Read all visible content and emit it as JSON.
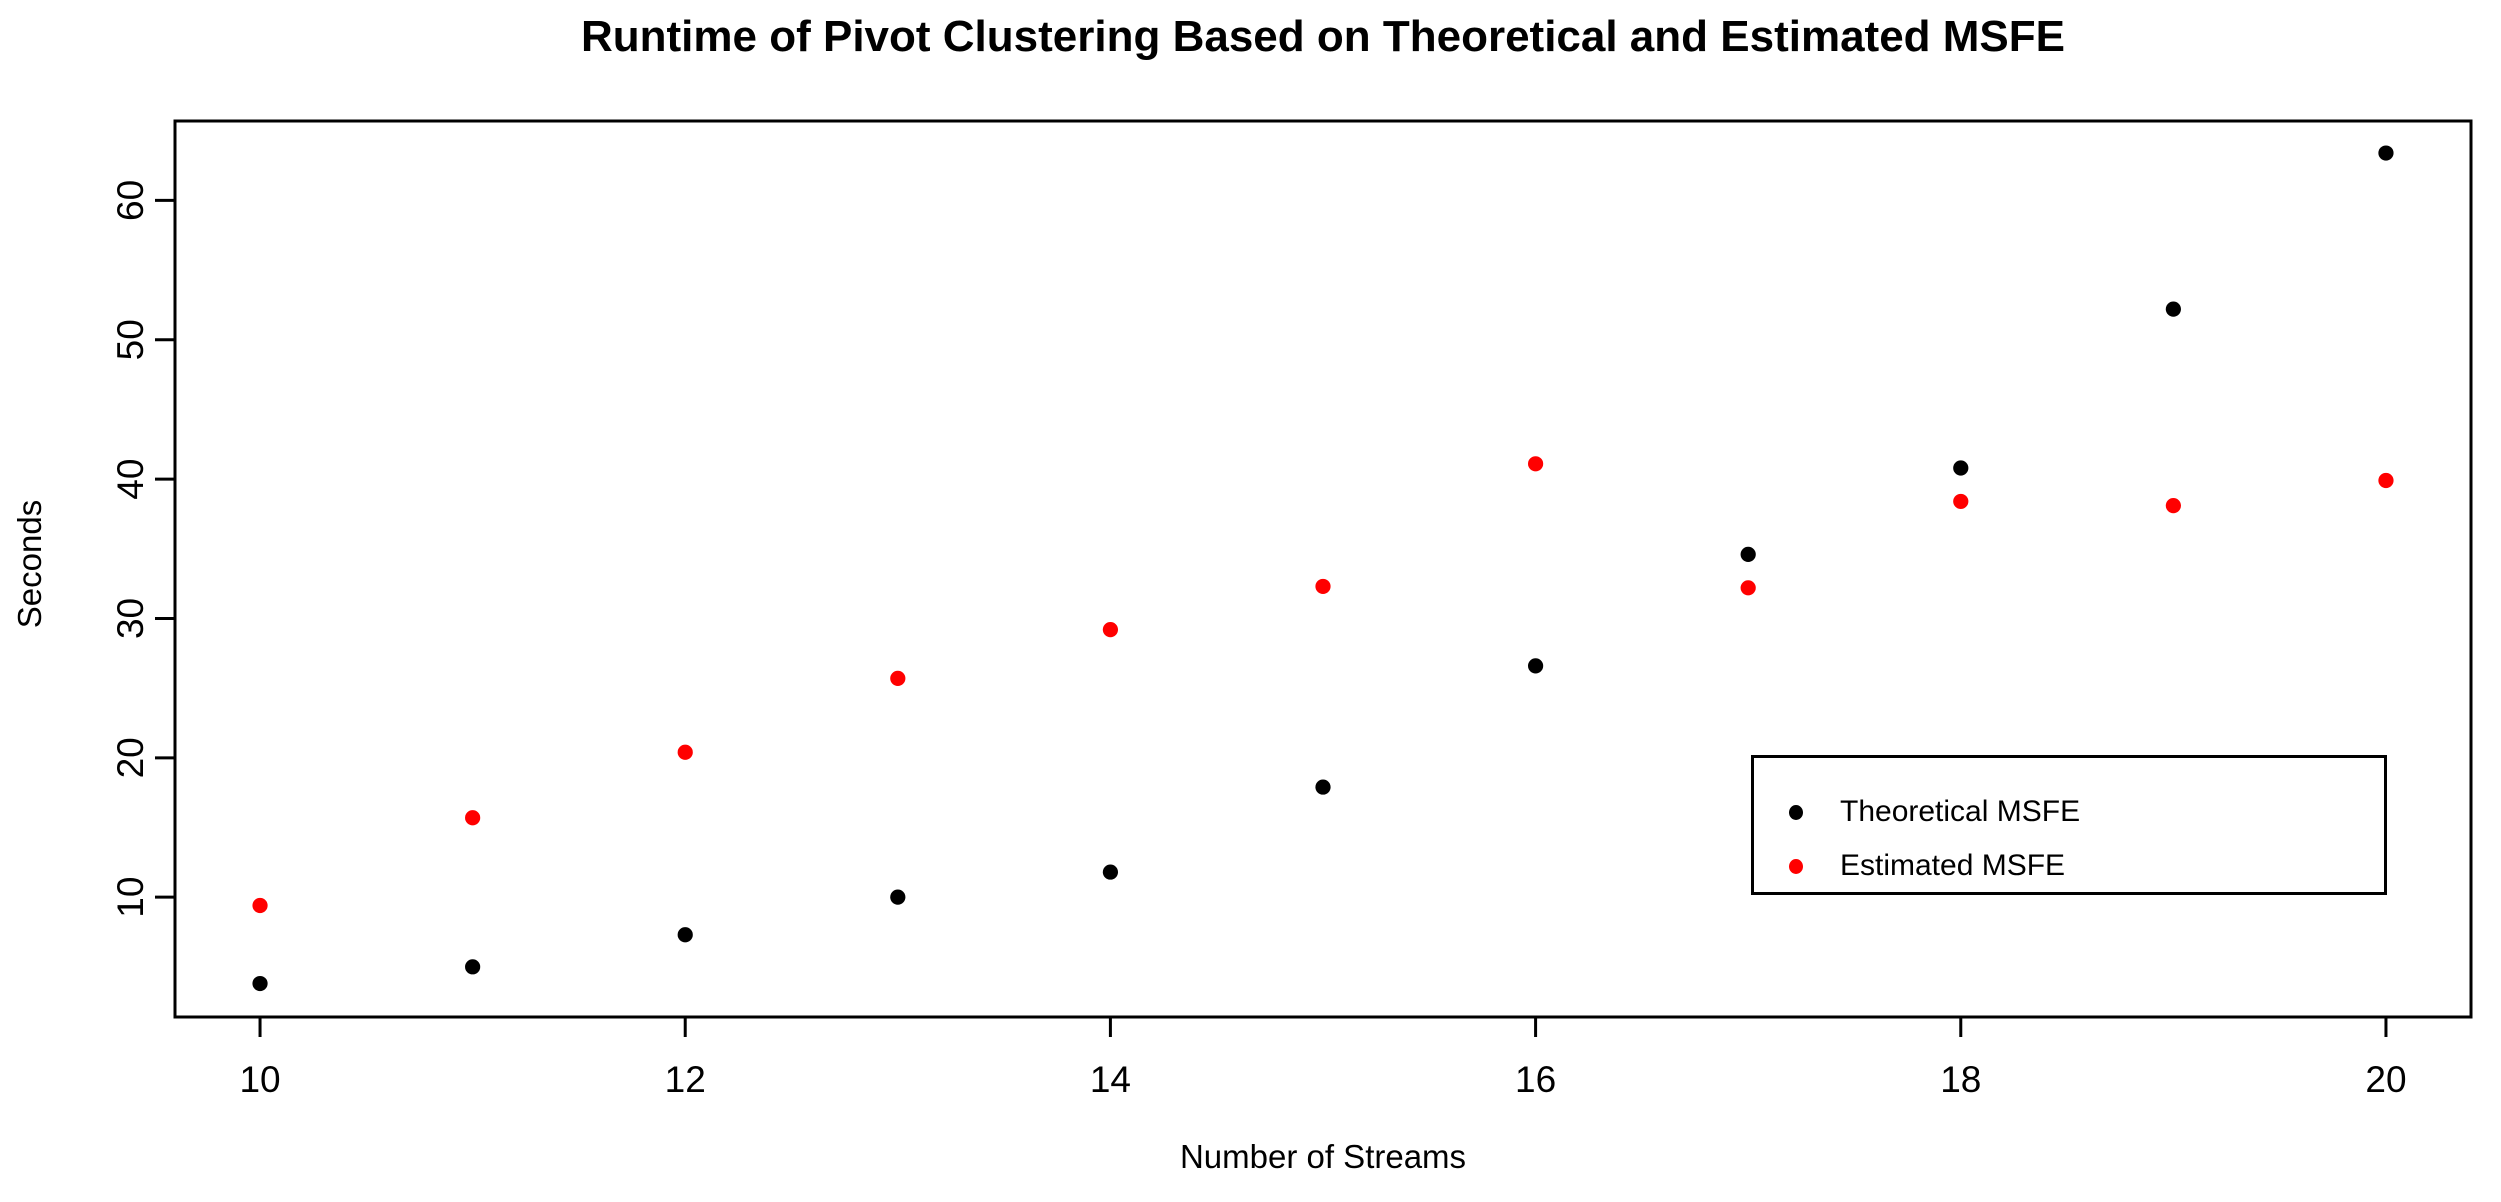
{
  "chart": {
    "title": "Runtime of Pivot Clustering Based on Theoretical and Estimated MSFE",
    "xlabel": "Number of Streams",
    "ylabel": "Seconds"
  },
  "chart_data": {
    "type": "scatter",
    "x": [
      10,
      11,
      12,
      13,
      14,
      15,
      16,
      17,
      18,
      19,
      20
    ],
    "series": [
      {
        "name": "Theoretical MSFE",
        "color": "#000000",
        "values": [
          3.8,
          5.0,
          7.3,
          10.0,
          11.8,
          17.9,
          26.6,
          34.6,
          40.8,
          52.2,
          63.4
        ]
      },
      {
        "name": "Estimated MSFE",
        "color": "#FF0000",
        "values": [
          9.4,
          15.7,
          20.4,
          25.7,
          29.2,
          32.3,
          41.1,
          32.2,
          38.4,
          38.1,
          39.9
        ]
      }
    ],
    "x_ticks": [
      10,
      12,
      14,
      16,
      18,
      20
    ],
    "y_ticks": [
      10,
      20,
      30,
      40,
      50,
      60
    ],
    "xlim": [
      9.6,
      20.4
    ],
    "ylim": [
      1.4,
      65.7
    ],
    "grid": false,
    "legend_position": "inside-right-lower",
    "title": "Runtime of Pivot Clustering Based on Theoretical and Estimated MSFE",
    "xlabel": "Number of Streams",
    "ylabel": "Seconds"
  }
}
